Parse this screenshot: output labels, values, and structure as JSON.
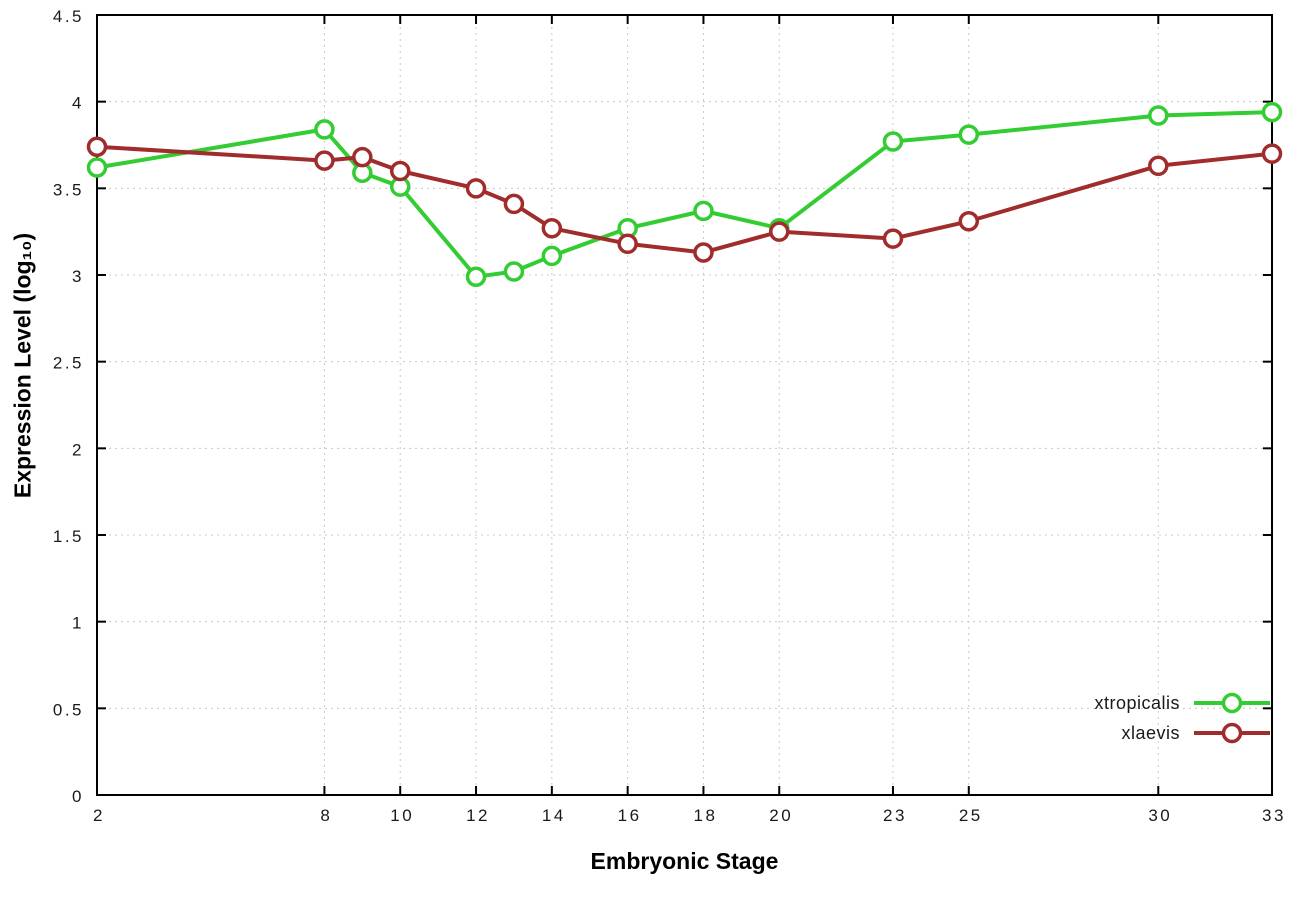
{
  "chart_data": {
    "type": "line",
    "title": "",
    "xlabel": "Embryonic Stage",
    "ylabel": "Expression Level (log₁₀)",
    "xlim": [
      2,
      33
    ],
    "ylim": [
      0,
      4.5
    ],
    "xticks": [
      2,
      8,
      10,
      12,
      14,
      16,
      18,
      20,
      23,
      25,
      30,
      33
    ],
    "yticks": [
      0,
      0.5,
      1,
      1.5,
      2,
      2.5,
      3,
      3.5,
      4,
      4.5
    ],
    "grid": true,
    "grid_color": "#c8c8c8",
    "axis_color": "#000000",
    "legend_position": "bottom-right",
    "x": [
      2,
      8,
      9,
      10,
      12,
      13,
      14,
      16,
      18,
      20,
      23,
      25,
      30,
      33
    ],
    "series": [
      {
        "name": "xtropicalis",
        "color": "#33cc33",
        "values": [
          3.62,
          3.84,
          3.59,
          3.51,
          2.99,
          3.02,
          3.11,
          3.27,
          3.37,
          3.27,
          3.77,
          3.81,
          3.92,
          3.94
        ]
      },
      {
        "name": "xlaevis",
        "color": "#a02c2c",
        "values": [
          3.74,
          3.66,
          3.68,
          3.6,
          3.5,
          3.41,
          3.27,
          3.18,
          3.13,
          3.25,
          3.21,
          3.31,
          3.63,
          3.7
        ]
      }
    ]
  }
}
